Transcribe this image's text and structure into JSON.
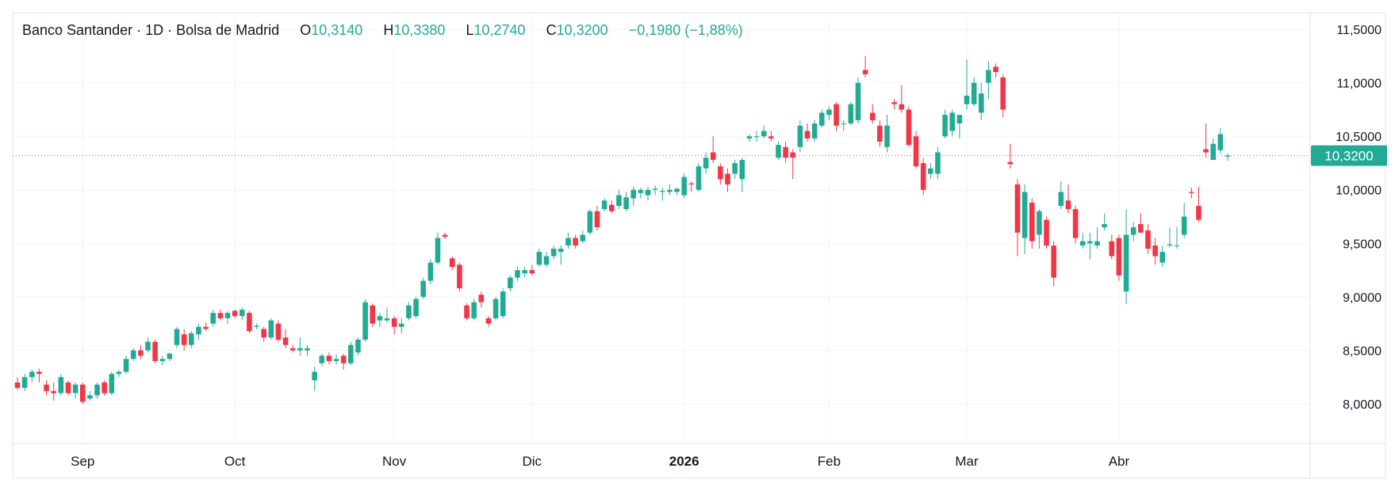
{
  "legend": {
    "instrument": "Banco Santander · 1D · Bolsa de Madrid",
    "open_label": "O",
    "open": "10,3140",
    "high_label": "H",
    "high": "10,3380",
    "low_label": "L",
    "low": "10,2740",
    "close_label": "C",
    "close": "10,3200",
    "change": "−0,1980 (−1,88%)"
  },
  "colors": {
    "up": "#22ab94",
    "down": "#f23645",
    "grid": "#f0f3fa",
    "axis_text": "#131722",
    "price_line": "#22ab94"
  },
  "chart_data": {
    "type": "candlestick",
    "title": "Banco Santander · 1D · Bolsa de Madrid",
    "ylim": [
      7.6,
      11.7
    ],
    "y_ticks": [
      8.0,
      8.5,
      9.0,
      9.5,
      10.0,
      10.5,
      11.0,
      11.5
    ],
    "y_tick_labels": [
      "8,0000",
      "8,5000",
      "9,0000",
      "9,5000",
      "10,0000",
      "10,5000",
      "11,0000",
      "11,5000"
    ],
    "x_labels": [
      {
        "label": "Sep",
        "index": 9,
        "bold": false
      },
      {
        "label": "Oct",
        "index": 30,
        "bold": false
      },
      {
        "label": "Nov",
        "index": 52,
        "bold": false
      },
      {
        "label": "Dic",
        "index": 71,
        "bold": false
      },
      {
        "label": "2026",
        "index": 92,
        "bold": true
      },
      {
        "label": "Feb",
        "index": 112,
        "bold": false
      },
      {
        "label": "Mar",
        "index": 131,
        "bold": false
      },
      {
        "label": "Abr",
        "index": 152,
        "bold": false
      }
    ],
    "last_price": 10.32,
    "last_price_label": "10,3200",
    "candles": [
      [
        8.2,
        8.25,
        8.13,
        8.15
      ],
      [
        8.15,
        8.28,
        8.12,
        8.25
      ],
      [
        8.25,
        8.32,
        8.2,
        8.3
      ],
      [
        8.3,
        8.33,
        8.2,
        8.28
      ],
      [
        8.18,
        8.22,
        8.08,
        8.12
      ],
      [
        8.12,
        8.2,
        8.03,
        8.1
      ],
      [
        8.1,
        8.28,
        8.08,
        8.25
      ],
      [
        8.2,
        8.22,
        8.08,
        8.1
      ],
      [
        8.1,
        8.2,
        8.05,
        8.18
      ],
      [
        8.18,
        8.2,
        8.0,
        8.02
      ],
      [
        8.05,
        8.12,
        8.03,
        8.08
      ],
      [
        8.08,
        8.2,
        8.05,
        8.18
      ],
      [
        8.2,
        8.22,
        8.08,
        8.1
      ],
      [
        8.1,
        8.3,
        8.08,
        8.28
      ],
      [
        8.28,
        8.32,
        8.25,
        8.3
      ],
      [
        8.3,
        8.45,
        8.28,
        8.42
      ],
      [
        8.42,
        8.52,
        8.4,
        8.5
      ],
      [
        8.5,
        8.55,
        8.42,
        8.45
      ],
      [
        8.5,
        8.62,
        8.48,
        8.58
      ],
      [
        8.58,
        8.6,
        8.38,
        8.4
      ],
      [
        8.4,
        8.45,
        8.36,
        8.42
      ],
      [
        8.42,
        8.48,
        8.4,
        8.47
      ],
      [
        8.55,
        8.72,
        8.52,
        8.7
      ],
      [
        8.65,
        8.7,
        8.5,
        8.55
      ],
      [
        8.55,
        8.68,
        8.52,
        8.66
      ],
      [
        8.65,
        8.75,
        8.6,
        8.72
      ],
      [
        8.72,
        8.76,
        8.68,
        8.7
      ],
      [
        8.75,
        8.88,
        8.72,
        8.85
      ],
      [
        8.85,
        8.88,
        8.78,
        8.8
      ],
      [
        8.8,
        8.87,
        8.75,
        8.85
      ],
      [
        8.87,
        8.88,
        8.8,
        8.82
      ],
      [
        8.82,
        8.9,
        8.78,
        8.88
      ],
      [
        8.85,
        8.87,
        8.66,
        8.68
      ],
      [
        8.72,
        8.75,
        8.7,
        8.73
      ],
      [
        8.7,
        8.72,
        8.58,
        8.62
      ],
      [
        8.62,
        8.8,
        8.6,
        8.78
      ],
      [
        8.75,
        8.78,
        8.58,
        8.6
      ],
      [
        8.62,
        8.7,
        8.52,
        8.55
      ],
      [
        8.52,
        8.55,
        8.48,
        8.5
      ],
      [
        8.5,
        8.62,
        8.45,
        8.52
      ],
      [
        8.5,
        8.55,
        8.45,
        8.52
      ],
      [
        8.22,
        8.35,
        8.12,
        8.3
      ],
      [
        8.38,
        8.47,
        8.35,
        8.45
      ],
      [
        8.45,
        8.48,
        8.37,
        8.4
      ],
      [
        8.4,
        8.46,
        8.37,
        8.42
      ],
      [
        8.45,
        8.47,
        8.32,
        8.38
      ],
      [
        8.38,
        8.58,
        8.36,
        8.55
      ],
      [
        8.48,
        8.62,
        8.45,
        8.6
      ],
      [
        8.6,
        8.98,
        8.58,
        8.95
      ],
      [
        8.92,
        8.94,
        8.72,
        8.75
      ],
      [
        8.78,
        8.85,
        8.72,
        8.82
      ],
      [
        8.78,
        8.9,
        8.76,
        8.8
      ],
      [
        8.8,
        8.82,
        8.65,
        8.72
      ],
      [
        8.72,
        8.8,
        8.66,
        8.75
      ],
      [
        8.8,
        8.95,
        8.78,
        8.92
      ],
      [
        8.82,
        9.0,
        8.8,
        8.98
      ],
      [
        9.0,
        9.18,
        8.98,
        9.15
      ],
      [
        9.15,
        9.35,
        9.12,
        9.32
      ],
      [
        9.32,
        9.6,
        9.3,
        9.55
      ],
      [
        9.58,
        9.6,
        9.54,
        9.56
      ],
      [
        9.36,
        9.38,
        9.25,
        9.28
      ],
      [
        9.3,
        9.32,
        9.05,
        9.08
      ],
      [
        8.92,
        8.94,
        8.78,
        8.8
      ],
      [
        8.8,
        8.98,
        8.78,
        8.95
      ],
      [
        9.02,
        9.05,
        8.9,
        8.95
      ],
      [
        8.8,
        8.82,
        8.72,
        8.75
      ],
      [
        8.8,
        9.0,
        8.78,
        8.98
      ],
      [
        8.82,
        9.08,
        8.8,
        9.05
      ],
      [
        9.08,
        9.2,
        9.05,
        9.18
      ],
      [
        9.18,
        9.28,
        9.15,
        9.25
      ],
      [
        9.22,
        9.28,
        9.18,
        9.25
      ],
      [
        9.25,
        9.3,
        9.2,
        9.22
      ],
      [
        9.3,
        9.45,
        9.28,
        9.42
      ],
      [
        9.3,
        9.42,
        9.28,
        9.38
      ],
      [
        9.38,
        9.48,
        9.35,
        9.45
      ],
      [
        9.42,
        9.48,
        9.3,
        9.45
      ],
      [
        9.48,
        9.6,
        9.45,
        9.55
      ],
      [
        9.55,
        9.58,
        9.45,
        9.48
      ],
      [
        9.52,
        9.62,
        9.5,
        9.58
      ],
      [
        9.6,
        9.82,
        9.58,
        9.8
      ],
      [
        9.8,
        9.85,
        9.62,
        9.65
      ],
      [
        9.82,
        9.92,
        9.8,
        9.9
      ],
      [
        9.86,
        9.9,
        9.78,
        9.8
      ],
      [
        9.85,
        10.0,
        9.82,
        9.95
      ],
      [
        9.82,
        9.98,
        9.8,
        9.93
      ],
      [
        9.92,
        10.03,
        9.85,
        10.0
      ],
      [
        9.97,
        10.02,
        9.92,
        10.0
      ],
      [
        9.95,
        10.03,
        9.9,
        10.0
      ],
      [
        10.0,
        10.04,
        9.95,
        10.01
      ],
      [
        9.98,
        10.02,
        9.9,
        9.99
      ],
      [
        9.98,
        10.05,
        9.95,
        10.0
      ],
      [
        9.98,
        10.02,
        9.95,
        10.01
      ],
      [
        9.95,
        10.15,
        9.92,
        10.12
      ],
      [
        10.06,
        10.08,
        9.98,
        10.05
      ],
      [
        10.0,
        10.25,
        9.98,
        10.22
      ],
      [
        10.2,
        10.35,
        10.15,
        10.3
      ],
      [
        10.35,
        10.5,
        10.25,
        10.28
      ],
      [
        10.22,
        10.25,
        10.05,
        10.1
      ],
      [
        10.15,
        10.2,
        9.98,
        10.05
      ],
      [
        10.15,
        10.28,
        10.1,
        10.25
      ],
      [
        10.1,
        10.3,
        9.98,
        10.28
      ],
      [
        10.48,
        10.52,
        10.45,
        10.5
      ],
      [
        10.5,
        10.55,
        10.45,
        10.5
      ],
      [
        10.5,
        10.6,
        10.48,
        10.55
      ],
      [
        10.5,
        10.55,
        10.45,
        10.48
      ],
      [
        10.3,
        10.45,
        10.28,
        10.42
      ],
      [
        10.4,
        10.45,
        10.25,
        10.3
      ],
      [
        10.35,
        10.38,
        10.1,
        10.3
      ],
      [
        10.4,
        10.65,
        10.35,
        10.6
      ],
      [
        10.55,
        10.62,
        10.45,
        10.48
      ],
      [
        10.48,
        10.65,
        10.45,
        10.62
      ],
      [
        10.6,
        10.75,
        10.58,
        10.72
      ],
      [
        10.7,
        10.78,
        10.65,
        10.75
      ],
      [
        10.8,
        10.82,
        10.55,
        10.6
      ],
      [
        10.62,
        10.65,
        10.55,
        10.62
      ],
      [
        10.62,
        10.82,
        10.6,
        10.8
      ],
      [
        10.65,
        11.05,
        10.62,
        11.0
      ],
      [
        11.12,
        11.25,
        11.05,
        11.08
      ],
      [
        10.72,
        10.8,
        10.62,
        10.65
      ],
      [
        10.6,
        10.65,
        10.4,
        10.45
      ],
      [
        10.4,
        10.7,
        10.35,
        10.6
      ],
      [
        10.82,
        10.85,
        10.75,
        10.8
      ],
      [
        10.8,
        10.98,
        10.72,
        10.75
      ],
      [
        10.75,
        10.78,
        10.4,
        10.42
      ],
      [
        10.5,
        10.55,
        10.2,
        10.22
      ],
      [
        10.25,
        10.3,
        9.95,
        10.0
      ],
      [
        10.15,
        10.25,
        10.1,
        10.2
      ],
      [
        10.15,
        10.4,
        10.1,
        10.35
      ],
      [
        10.5,
        10.75,
        10.48,
        10.7
      ],
      [
        10.55,
        10.75,
        10.5,
        10.72
      ],
      [
        10.62,
        10.7,
        10.48,
        10.7
      ],
      [
        10.8,
        11.22,
        10.75,
        10.88
      ],
      [
        10.8,
        11.05,
        10.78,
        11.0
      ],
      [
        10.72,
        11.0,
        10.65,
        10.9
      ],
      [
        11.0,
        11.2,
        10.85,
        11.12
      ],
      [
        11.15,
        11.18,
        11.05,
        11.1
      ],
      [
        11.05,
        11.08,
        10.68,
        10.75
      ],
      [
        10.26,
        10.43,
        10.2,
        10.24
      ],
      [
        10.05,
        10.1,
        9.38,
        9.6
      ],
      [
        9.55,
        10.05,
        9.4,
        9.98
      ],
      [
        9.88,
        9.92,
        9.45,
        9.52
      ],
      [
        9.58,
        9.82,
        9.45,
        9.8
      ],
      [
        9.72,
        9.75,
        9.45,
        9.48
      ],
      [
        9.48,
        9.52,
        9.1,
        9.18
      ],
      [
        9.85,
        10.08,
        9.82,
        9.98
      ],
      [
        9.9,
        10.05,
        9.78,
        9.82
      ],
      [
        9.82,
        9.85,
        9.5,
        9.55
      ],
      [
        9.48,
        9.6,
        9.45,
        9.52
      ],
      [
        9.5,
        9.6,
        9.35,
        9.52
      ],
      [
        9.48,
        9.65,
        9.45,
        9.52
      ],
      [
        9.65,
        9.78,
        9.62,
        9.68
      ],
      [
        9.52,
        9.58,
        9.35,
        9.38
      ],
      [
        9.55,
        9.58,
        9.15,
        9.2
      ],
      [
        9.05,
        9.82,
        8.93,
        9.58
      ],
      [
        9.58,
        9.7,
        9.52,
        9.65
      ],
      [
        9.68,
        9.78,
        9.62,
        9.6
      ],
      [
        9.62,
        9.68,
        9.4,
        9.45
      ],
      [
        9.48,
        9.55,
        9.3,
        9.38
      ],
      [
        9.32,
        9.48,
        9.28,
        9.42
      ],
      [
        9.48,
        9.65,
        9.46,
        9.49
      ],
      [
        9.48,
        9.65,
        9.45,
        9.48
      ],
      [
        9.58,
        9.88,
        9.55,
        9.75
      ],
      [
        9.98,
        10.02,
        9.92,
        9.97
      ],
      [
        9.85,
        10.03,
        9.7,
        9.72
      ],
      [
        10.38,
        10.62,
        10.3,
        10.35
      ],
      [
        10.28,
        10.48,
        10.28,
        10.43
      ],
      [
        10.37,
        10.58,
        10.34,
        10.52
      ],
      [
        10.31,
        10.34,
        10.27,
        10.32
      ]
    ]
  }
}
